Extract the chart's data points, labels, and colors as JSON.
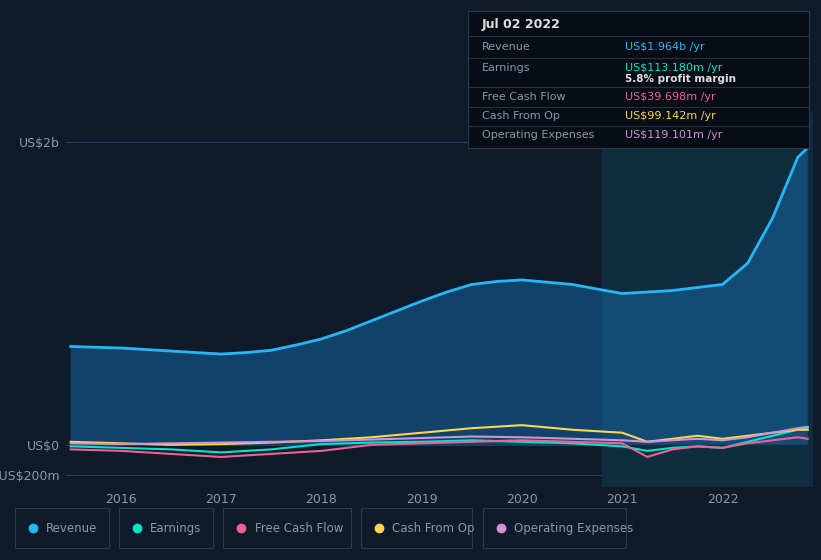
{
  "bg_color": "#0d1b2a",
  "plot_bg_color": "#0d1b2a",
  "revenue_color": "#29b6f6",
  "earnings_color": "#00e5cc",
  "fcf_color": "#f06292",
  "cashfromop_color": "#ffd54f",
  "opex_color": "#ce93d8",
  "y_labels": [
    "US$2b",
    "US$0",
    "-US$200m"
  ],
  "y_ticks": [
    2000,
    0,
    -200
  ],
  "ylim": [
    -280,
    2200
  ],
  "xlim": [
    2015.45,
    2022.9
  ],
  "x_ticks": [
    2016,
    2017,
    2018,
    2019,
    2020,
    2021,
    2022
  ],
  "highlight_x_start": 2020.8,
  "highlight_x_end": 2022.9,
  "revenue": {
    "x": [
      2015.5,
      2015.75,
      2016.0,
      2016.25,
      2016.5,
      2016.75,
      2017.0,
      2017.25,
      2017.5,
      2017.75,
      2018.0,
      2018.25,
      2018.5,
      2018.75,
      2019.0,
      2019.25,
      2019.5,
      2019.75,
      2020.0,
      2020.25,
      2020.5,
      2020.75,
      2021.0,
      2021.25,
      2021.5,
      2021.75,
      2022.0,
      2022.25,
      2022.5,
      2022.75,
      2022.85
    ],
    "y": [
      650,
      645,
      640,
      630,
      620,
      610,
      600,
      610,
      625,
      660,
      700,
      755,
      820,
      885,
      950,
      1010,
      1060,
      1080,
      1090,
      1075,
      1060,
      1030,
      1000,
      1010,
      1020,
      1040,
      1060,
      1200,
      1500,
      1900,
      1964
    ]
  },
  "earnings": {
    "x": [
      2015.5,
      2016.0,
      2016.5,
      2017.0,
      2017.5,
      2018.0,
      2018.5,
      2019.0,
      2019.5,
      2020.0,
      2020.5,
      2021.0,
      2021.25,
      2021.5,
      2021.75,
      2022.0,
      2022.25,
      2022.5,
      2022.75,
      2022.85
    ],
    "y": [
      -10,
      -20,
      -30,
      -50,
      -30,
      5,
      15,
      20,
      30,
      20,
      10,
      -10,
      -40,
      -20,
      -10,
      -20,
      20,
      60,
      100,
      113
    ]
  },
  "fcf": {
    "x": [
      2015.5,
      2016.0,
      2016.5,
      2017.0,
      2017.5,
      2018.0,
      2018.5,
      2019.0,
      2019.5,
      2020.0,
      2020.5,
      2021.0,
      2021.25,
      2021.5,
      2021.75,
      2022.0,
      2022.25,
      2022.5,
      2022.75,
      2022.85
    ],
    "y": [
      -30,
      -40,
      -60,
      -80,
      -60,
      -40,
      0,
      10,
      20,
      30,
      20,
      10,
      -80,
      -30,
      -10,
      -20,
      10,
      30,
      50,
      40
    ]
  },
  "cashfromop": {
    "x": [
      2015.5,
      2016.0,
      2016.5,
      2017.0,
      2017.5,
      2018.0,
      2018.5,
      2019.0,
      2019.5,
      2020.0,
      2020.5,
      2021.0,
      2021.25,
      2021.5,
      2021.75,
      2022.0,
      2022.25,
      2022.5,
      2022.75,
      2022.85
    ],
    "y": [
      20,
      10,
      0,
      5,
      15,
      30,
      50,
      80,
      110,
      130,
      100,
      80,
      20,
      40,
      60,
      40,
      60,
      80,
      100,
      99
    ]
  },
  "opex": {
    "x": [
      2015.5,
      2016.0,
      2016.5,
      2017.0,
      2017.5,
      2018.0,
      2018.5,
      2019.0,
      2019.5,
      2020.0,
      2020.5,
      2021.0,
      2021.25,
      2021.5,
      2021.75,
      2022.0,
      2022.25,
      2022.5,
      2022.75,
      2022.85
    ],
    "y": [
      10,
      5,
      10,
      15,
      20,
      25,
      35,
      45,
      55,
      50,
      40,
      30,
      20,
      30,
      40,
      30,
      50,
      80,
      110,
      119
    ]
  },
  "tooltip": {
    "date": "Jul 02 2022",
    "revenue_label": "Revenue",
    "revenue_val": "US$1.964b",
    "revenue_color": "#29b6f6",
    "earnings_label": "Earnings",
    "earnings_val": "US$113.180m",
    "earnings_color": "#00e5cc",
    "margin_val": "5.8%",
    "fcf_label": "Free Cash Flow",
    "fcf_val": "US$39.698m",
    "fcf_color": "#f06292",
    "cashfromop_label": "Cash From Op",
    "cashfromop_val": "US$99.142m",
    "cashfromop_color": "#ffd54f",
    "opex_label": "Operating Expenses",
    "opex_val": "US$119.101m",
    "opex_color": "#ce93d8"
  },
  "legend": [
    {
      "label": "Revenue",
      "color": "#29b6f6"
    },
    {
      "label": "Earnings",
      "color": "#00e5cc"
    },
    {
      "label": "Free Cash Flow",
      "color": "#f06292"
    },
    {
      "label": "Cash From Op",
      "color": "#ffd54f"
    },
    {
      "label": "Operating Expenses",
      "color": "#ce93d8"
    }
  ],
  "grid_color": "#263f58",
  "text_color": "#8899aa",
  "white_color": "#e0e0e0",
  "tooltip_bg": "#070d14",
  "tooltip_border": "#2a3a4a"
}
